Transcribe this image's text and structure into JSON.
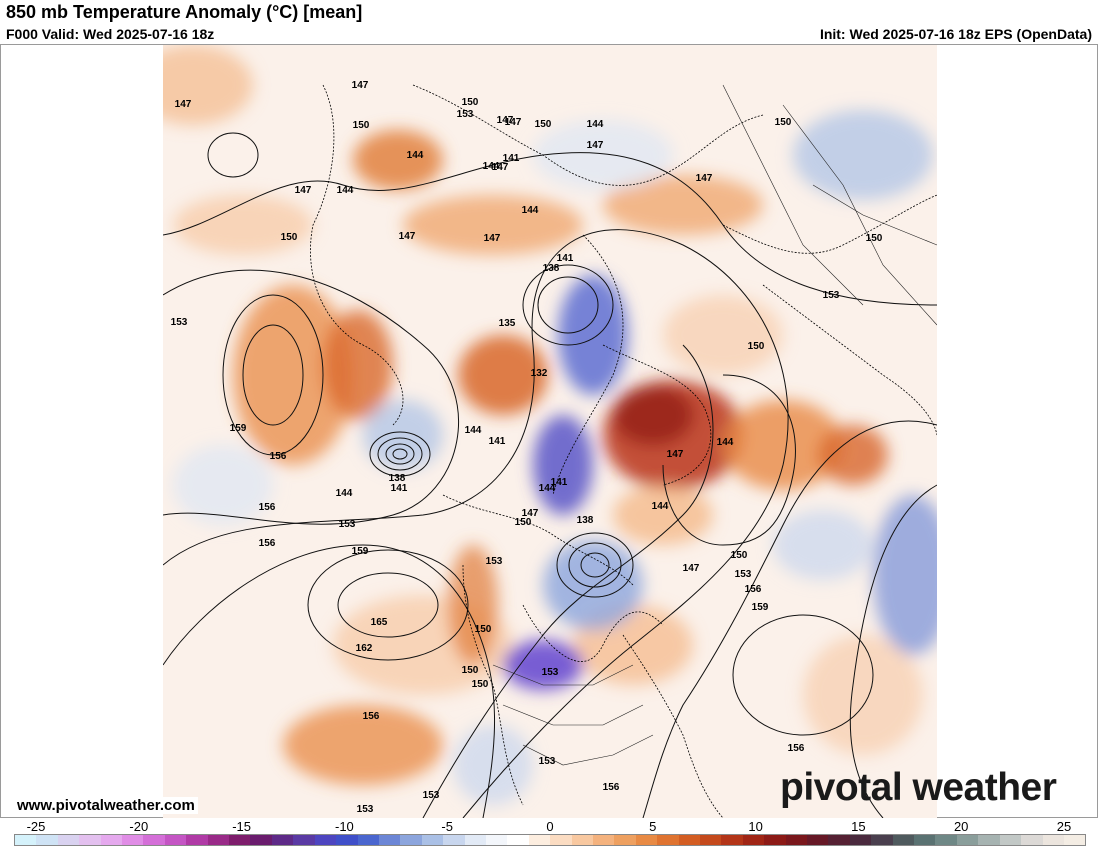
{
  "header": {
    "title": "850 mb Temperature Anomaly (°C) [mean]",
    "valid": "F000 Valid: Wed 2025-07-16 18z",
    "init": "Init: Wed 2025-07-16 18z EPS (OpenData)"
  },
  "footer": {
    "website": "www.pivotalweather.com",
    "logo": "pivotal weather"
  },
  "colorbar": {
    "ticks": [
      "-25",
      "-20",
      "-15",
      "-10",
      "-5",
      "0",
      "5",
      "10",
      "15",
      "20",
      "25"
    ],
    "colors": [
      "#d5f2fb",
      "#cfe3f5",
      "#d9d2f0",
      "#e3c0ef",
      "#e5a9ee",
      "#e08de6",
      "#d46fd8",
      "#c455c4",
      "#b03aa6",
      "#992a88",
      "#7e1d6c",
      "#6a1c6e",
      "#5e2a88",
      "#5a3aa4",
      "#4d45c0",
      "#3f4fc9",
      "#4a66cf",
      "#6c86d6",
      "#8ca5dd",
      "#aac0e6",
      "#c8d6ee",
      "#e2eaf6",
      "#f3f6fb",
      "#ffffff",
      "#fdeee0",
      "#fbdcc2",
      "#f8c8a0",
      "#f4b27e",
      "#eea060",
      "#e88a44",
      "#df7330",
      "#d35d22",
      "#c4491c",
      "#b33518",
      "#a02515",
      "#8c1a16",
      "#7a171c",
      "#661826",
      "#552033",
      "#4a2a3e",
      "#4a3f4e",
      "#4f5a5e",
      "#5a7272",
      "#6f8886",
      "#8a9e9b",
      "#a6b3b1",
      "#c2c8c6",
      "#dcd9d6",
      "#ece5de",
      "#f4ede4"
    ]
  },
  "map": {
    "contour_labels": [
      {
        "text": "147"
      },
      {
        "text": "150"
      },
      {
        "text": "153"
      },
      {
        "text": "147"
      },
      {
        "text": "150"
      },
      {
        "text": "144"
      },
      {
        "text": "147"
      },
      {
        "text": "150"
      },
      {
        "text": "147"
      },
      {
        "text": "141"
      },
      {
        "text": "144"
      },
      {
        "text": "147"
      },
      {
        "text": "144"
      },
      {
        "text": "147"
      },
      {
        "text": "150"
      },
      {
        "text": "144"
      },
      {
        "text": "147"
      },
      {
        "text": "150"
      },
      {
        "text": "147"
      },
      {
        "text": "147"
      },
      {
        "text": "144"
      },
      {
        "text": "147"
      },
      {
        "text": "141"
      },
      {
        "text": "138"
      },
      {
        "text": "150"
      },
      {
        "text": "153"
      },
      {
        "text": "153"
      },
      {
        "text": "135"
      },
      {
        "text": "132"
      },
      {
        "text": "150"
      },
      {
        "text": "144"
      },
      {
        "text": "141"
      },
      {
        "text": "147"
      },
      {
        "text": "144"
      },
      {
        "text": "159"
      },
      {
        "text": "156"
      },
      {
        "text": "156"
      },
      {
        "text": "138"
      },
      {
        "text": "141"
      },
      {
        "text": "144"
      },
      {
        "text": "144"
      },
      {
        "text": "141"
      },
      {
        "text": "147"
      },
      {
        "text": "150"
      },
      {
        "text": "138"
      },
      {
        "text": "144"
      },
      {
        "text": "156"
      },
      {
        "text": "153"
      },
      {
        "text": "159"
      },
      {
        "text": "153"
      },
      {
        "text": "150"
      },
      {
        "text": "147"
      },
      {
        "text": "153"
      },
      {
        "text": "156"
      },
      {
        "text": "159"
      },
      {
        "text": "165"
      },
      {
        "text": "162"
      },
      {
        "text": "150"
      },
      {
        "text": "150"
      },
      {
        "text": "150"
      },
      {
        "text": "153"
      },
      {
        "text": "156"
      },
      {
        "text": "153"
      },
      {
        "text": "156"
      },
      {
        "text": "156"
      },
      {
        "text": "153"
      },
      {
        "text": "153"
      }
    ]
  }
}
